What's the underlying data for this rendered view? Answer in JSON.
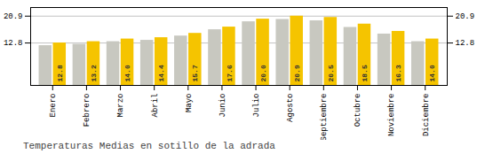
{
  "chart_data": {
    "type": "bar",
    "title": "Temperaturas Medias en sotillo de la adrada",
    "categories": [
      "Enero",
      "Febrero",
      "Marzo",
      "Abril",
      "Mayo",
      "Junio",
      "Julio",
      "Agosto",
      "Septiembre",
      "Octubre",
      "Noviembre",
      "Diciembre"
    ],
    "series": [
      {
        "color": "#C8C8C0",
        "values": [
          12.0,
          12.4,
          13.2,
          13.6,
          14.9,
          16.8,
          19.2,
          19.9,
          19.5,
          17.5,
          15.5,
          13.2
        ]
      },
      {
        "color": "#F5C400",
        "values": [
          12.8,
          13.2,
          14.0,
          14.4,
          15.7,
          17.6,
          20.0,
          20.9,
          20.5,
          18.5,
          16.3,
          14.0
        ],
        "data_labels": true,
        "value_labels": [
          "12.8",
          "13.2",
          "14.0",
          "14.4",
          "15.7",
          "17.6",
          "20.0",
          "20.9",
          "20.5",
          "18.5",
          "16.3",
          "14.0"
        ]
      }
    ],
    "ylim": [
      0,
      23.5
    ],
    "yticks": [
      12.8,
      20.9
    ],
    "grid": true
  }
}
